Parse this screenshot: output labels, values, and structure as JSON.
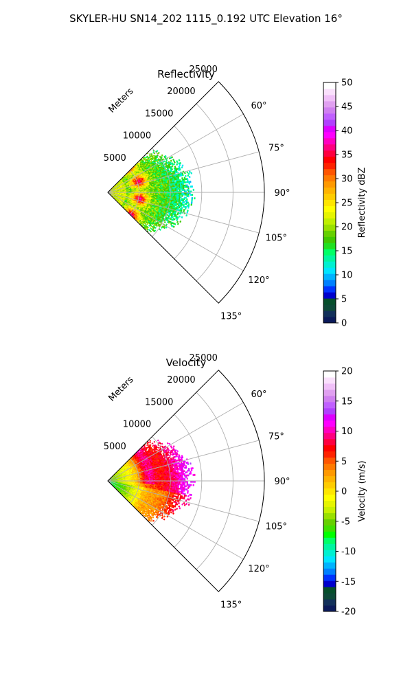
{
  "figure": {
    "suptitle": "SKYLER-HU  SN14_202  1115_0.192 UTC Elevation 16°"
  },
  "chart_data": [
    {
      "type": "heatmap",
      "projection": "polar-sector",
      "title": "Reflectivity",
      "radial_label": "Meters",
      "radial_ticks": [
        "5000",
        "10000",
        "15000",
        "20000",
        "25000"
      ],
      "r_values": [
        5000,
        10000,
        15000,
        20000,
        25000
      ],
      "r_max": 25000,
      "angle_ticks": [
        "60°",
        "75°",
        "90°",
        "105°",
        "120°",
        "135°"
      ],
      "angle_values": [
        60,
        75,
        90,
        105,
        120,
        135
      ],
      "theta_range_deg": [
        45,
        135
      ],
      "grid": true,
      "colorbar": {
        "label": "Reflectivity dBZ",
        "ticks": [
          "0",
          "5",
          "10",
          "15",
          "20",
          "25",
          "30",
          "35",
          "40",
          "45",
          "50"
        ],
        "range": [
          0,
          50
        ]
      },
      "data_extent_m": [
        0,
        14000
      ],
      "colormap_name": "radar-reflectivity",
      "colormap": [
        "#0b1a5a",
        "#12305a",
        "#0d4a38",
        "#064f2b",
        "#0000cc",
        "#0033ff",
        "#0080ff",
        "#00b3ff",
        "#00e5ff",
        "#00f0d0",
        "#00f5a0",
        "#00ff66",
        "#20e020",
        "#40c800",
        "#66d000",
        "#99e000",
        "#c0ef00",
        "#e6f500",
        "#ffff00",
        "#ffe600",
        "#ffcc00",
        "#ffb300",
        "#ff9900",
        "#ff7a00",
        "#ff5500",
        "#ff2200",
        "#ff0000",
        "#ff0040",
        "#ff0080",
        "#ff00c0",
        "#ff00ff",
        "#dd00ff",
        "#b040ff",
        "#c060ff",
        "#d080f0",
        "#e0a0f0",
        "#f0c0f8",
        "#fae0fc",
        "#ffffff"
      ]
    },
    {
      "type": "heatmap",
      "projection": "polar-sector",
      "title": "Velocity",
      "radial_label": "Meters",
      "radial_ticks": [
        "5000",
        "10000",
        "15000",
        "20000",
        "25000"
      ],
      "r_values": [
        5000,
        10000,
        15000,
        20000,
        25000
      ],
      "r_max": 25000,
      "angle_ticks": [
        "60°",
        "75°",
        "90°",
        "105°",
        "120°",
        "135°"
      ],
      "angle_values": [
        60,
        75,
        90,
        105,
        120,
        135
      ],
      "theta_range_deg": [
        45,
        135
      ],
      "grid": true,
      "colorbar": {
        "label": "Velocity (m/s)",
        "ticks": [
          "-20",
          "-15",
          "-10",
          "-5",
          "0",
          "5",
          "10",
          "15",
          "20"
        ],
        "range": [
          -20,
          20
        ]
      },
      "data_extent_m": [
        0,
        14000
      ],
      "colormap_name": "radar-velocity",
      "colormap": [
        "#0b1a5a",
        "#12305a",
        "#0d4a38",
        "#064f2b",
        "#0000cc",
        "#0033ff",
        "#0080ff",
        "#00b3ff",
        "#00e5ff",
        "#00f0d0",
        "#00f5a0",
        "#00ff66",
        "#00ff00",
        "#40e000",
        "#66d000",
        "#99e000",
        "#c8f000",
        "#e6f500",
        "#ffff00",
        "#ffe600",
        "#ffcc00",
        "#ffb300",
        "#ff9900",
        "#ff7a00",
        "#ff5500",
        "#ff2200",
        "#ff0000",
        "#ff0040",
        "#ff0080",
        "#ff00c0",
        "#ff00ff",
        "#dd00ff",
        "#b040ff",
        "#c060ff",
        "#d080f0",
        "#e0a0f0",
        "#f0c0f8",
        "#fae0fc",
        "#ffffff"
      ]
    }
  ]
}
